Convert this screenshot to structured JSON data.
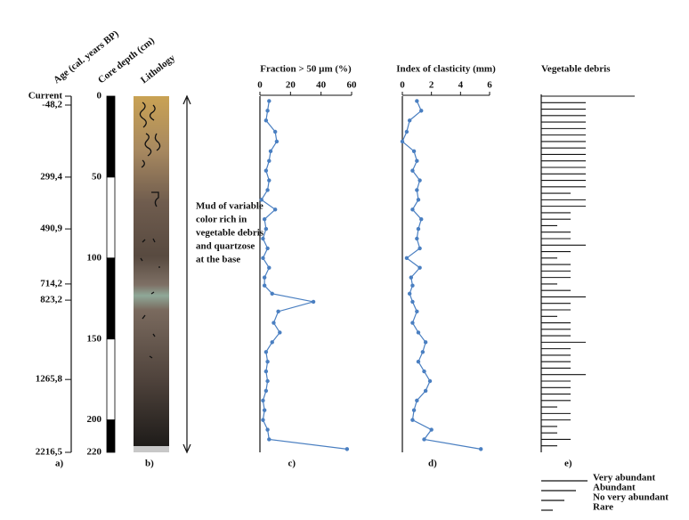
{
  "chart_data": [
    {
      "type": "age-axis",
      "title": "Age (cal. years BP)",
      "label": "a)",
      "ylim": [
        0,
        220
      ],
      "ticks": [
        {
          "value": 0,
          "label": "Current"
        },
        {
          "value": 5.5,
          "label": "-48,2"
        },
        {
          "value": 50,
          "label": "299,4"
        },
        {
          "value": 82,
          "label": "490,9"
        },
        {
          "value": 116,
          "label": "714,2"
        },
        {
          "value": 126,
          "label": "823,2"
        },
        {
          "value": 175,
          "label": "1265,8"
        },
        {
          "value": 220,
          "label": "2216,5"
        }
      ]
    },
    {
      "type": "core",
      "title": "Core depth (cm)",
      "ylim": [
        0,
        220
      ],
      "yticks": [
        0,
        50,
        100,
        150,
        200,
        220
      ]
    },
    {
      "type": "lithology",
      "title": "Lithology",
      "label": "b)",
      "ylim": [
        0,
        220
      ],
      "annotation": [
        "Mud of variable",
        "color rich in",
        "vegetable debris",
        "and quartzose",
        "at the base"
      ]
    },
    {
      "type": "profile",
      "title": "Fraction > 50 µm (%)",
      "label": "c)",
      "color": "#4a7fc1",
      "xlim": [
        0,
        60
      ],
      "xticks": [
        0,
        20,
        40,
        60
      ],
      "ylim": [
        0,
        220
      ],
      "y": [
        3,
        9,
        15,
        22,
        28,
        34,
        40,
        46,
        52,
        58,
        64,
        70,
        76,
        82,
        88,
        94,
        100,
        106,
        112,
        117,
        122,
        127,
        133,
        140,
        146,
        152,
        158,
        164,
        170,
        176,
        182,
        188,
        194,
        200,
        206,
        212,
        218
      ],
      "values": [
        6,
        5,
        4,
        10,
        11,
        7,
        6,
        4,
        6,
        5,
        1,
        10,
        3,
        4,
        2,
        5,
        2,
        6,
        3,
        3,
        8,
        35,
        12,
        9,
        13,
        8,
        4,
        5,
        4,
        5,
        4,
        2,
        3,
        2,
        5,
        6,
        57
      ]
    },
    {
      "type": "profile",
      "title": "Index of clasticity (mm)",
      "label": "d)",
      "color": "#4a7fc1",
      "xlim": [
        0,
        6
      ],
      "xticks": [
        0,
        2,
        4,
        6
      ],
      "ylim": [
        0,
        220
      ],
      "y": [
        3,
        9,
        15,
        22,
        28,
        34,
        40,
        46,
        52,
        58,
        64,
        70,
        76,
        82,
        88,
        94,
        100,
        106,
        112,
        117,
        122,
        127,
        133,
        140,
        146,
        152,
        158,
        164,
        170,
        176,
        182,
        188,
        194,
        200,
        206,
        212,
        218
      ],
      "values": [
        1,
        1.3,
        0.5,
        0.3,
        0,
        0.8,
        1,
        0.7,
        1.2,
        1,
        1.1,
        0.7,
        1.3,
        1.1,
        1,
        1.2,
        0.3,
        1.2,
        0.6,
        0.7,
        0.5,
        0.7,
        1,
        0.7,
        1.1,
        1.6,
        1.4,
        1.1,
        1.5,
        1.9,
        1.6,
        1,
        0.8,
        0.7,
        2,
        1.5,
        5.4
      ]
    },
    {
      "type": "debris",
      "title": "Vegetable debris",
      "label": "e)",
      "ylim": [
        0,
        220
      ],
      "y": [
        0,
        4,
        8,
        12,
        16,
        20,
        24,
        28,
        32,
        36,
        40,
        44,
        48,
        52,
        56,
        60,
        64,
        68,
        72,
        76,
        80,
        84,
        88,
        92,
        96,
        100,
        104,
        108,
        112,
        116,
        120,
        124,
        128,
        132,
        136,
        140,
        144,
        148,
        152,
        156,
        160,
        164,
        168,
        172,
        176,
        180,
        184,
        188,
        192,
        196,
        200,
        204,
        208,
        212,
        216
      ],
      "values": [
        4,
        3,
        3,
        3,
        3,
        3,
        3,
        3,
        3,
        3,
        3,
        3,
        3,
        3,
        3,
        2,
        3,
        3,
        2,
        2,
        1,
        2,
        2,
        3,
        2,
        1,
        2,
        2,
        2,
        1,
        2,
        3,
        2,
        2,
        1,
        2,
        2,
        2,
        3,
        2,
        2,
        2,
        2,
        3,
        2,
        2,
        2,
        2,
        1,
        2,
        2,
        1,
        1,
        2,
        1
      ],
      "legend": [
        {
          "name": "Very abundant",
          "value": 4
        },
        {
          "name": "Abundant",
          "value": 3
        },
        {
          "name": "No very abundant",
          "value": 2
        },
        {
          "name": "Rare",
          "value": 1
        }
      ]
    }
  ]
}
